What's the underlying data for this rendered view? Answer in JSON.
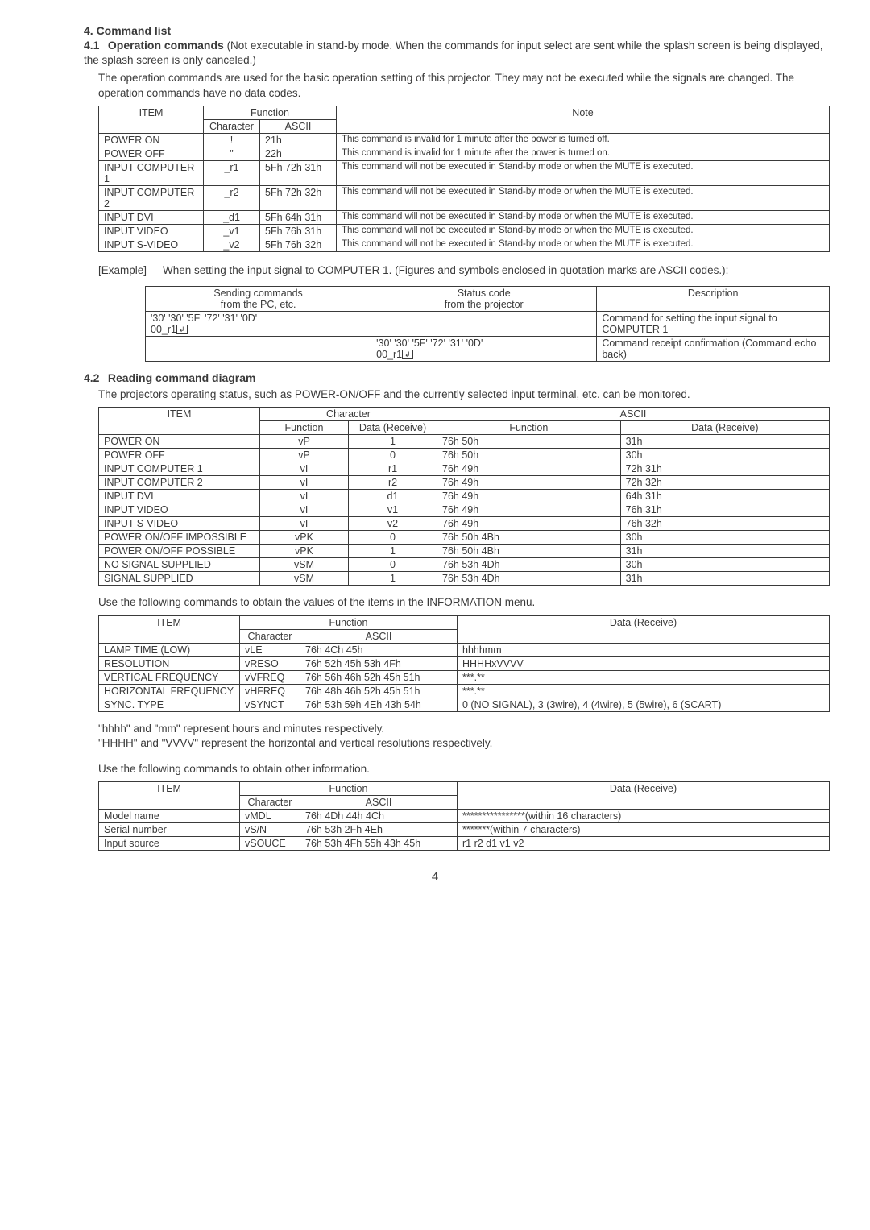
{
  "s4": {
    "heading": "4.  Command list",
    "s41": {
      "num": "4.1",
      "title": "Operation commands",
      "inline": " (Not executable in stand-by mode. When the commands for input select are sent while the splash screen is being displayed, the splash screen is only canceled.)",
      "para": "The operation commands are used for the basic operation setting of this projector. They may not be executed while the signals are changed. The operation commands have no data codes.",
      "table": {
        "h_item": "ITEM",
        "h_func": "Function",
        "h_char": "Character",
        "h_ascii": "ASCII",
        "h_note": "Note",
        "rows": [
          {
            "item": "POWER ON",
            "char": "!",
            "ascii": "21h",
            "note": "This command is invalid for 1 minute after the power is turned off."
          },
          {
            "item": "POWER OFF",
            "char": "\"",
            "ascii": "22h",
            "note": "This command is invalid for 1 minute after the power is turned on."
          },
          {
            "item": "INPUT COMPUTER 1",
            "char": "_r1",
            "ascii": "5Fh 72h 31h",
            "note": "This command will not be executed in Stand-by mode or when the MUTE is executed."
          },
          {
            "item": "INPUT COMPUTER 2",
            "char": "_r2",
            "ascii": "5Fh 72h 32h",
            "note": "This command will not be executed in Stand-by mode or when the MUTE is executed."
          },
          {
            "item": "INPUT DVI",
            "char": "_d1",
            "ascii": "5Fh 64h 31h",
            "note": "This command will not be executed in Stand-by mode or when the MUTE is executed."
          },
          {
            "item": "INPUT VIDEO",
            "char": "_v1",
            "ascii": "5Fh 76h 31h",
            "note": "This command will not be executed in Stand-by mode or when the MUTE is executed."
          },
          {
            "item": "INPUT S-VIDEO",
            "char": "_v2",
            "ascii": "5Fh 76h 32h",
            "note": "This command will not be executed in Stand-by mode or when the MUTE is executed."
          }
        ]
      },
      "example_label": "[Example]",
      "example_text": "When setting the input signal to COMPUTER 1. (Figures and symbols enclosed in quotation marks are ASCII codes.):",
      "ex_table": {
        "h1a": "Sending commands",
        "h1b": "from the PC, etc.",
        "h2a": "Status code",
        "h2b": "from the projector",
        "h3": "Description",
        "r1c1a": "'30' '30' '5F' '72' '31' '0D'",
        "r1c1b": "00_r1",
        "r1c3": "Command for setting the input signal to COMPUTER 1",
        "r2c2a": "'30' '30' '5F' '72' '31' '0D'",
        "r2c2b": "00_r1",
        "r2c3": "Command receipt confirmation (Command echo back)"
      }
    },
    "s42": {
      "num": "4.2",
      "title": "Reading command diagram",
      "para": "The projectors operating status, such as POWER-ON/OFF and the currently selected input terminal, etc. can be monitored.",
      "table": {
        "h_item": "ITEM",
        "h_char": "Character",
        "h_ascii": "ASCII",
        "h_func": "Function",
        "h_data": "Data (Receive)",
        "rows": [
          {
            "item": "POWER ON",
            "cf": "vP",
            "cd": "1",
            "af": "76h  50h",
            "ad": "31h"
          },
          {
            "item": "POWER OFF",
            "cf": "vP",
            "cd": "0",
            "af": "76h  50h",
            "ad": "30h"
          },
          {
            "item": "INPUT COMPUTER 1",
            "cf": "vI",
            "cd": "r1",
            "af": "76h  49h",
            "ad": "72h  31h"
          },
          {
            "item": "INPUT COMPUTER 2",
            "cf": "vI",
            "cd": "r2",
            "af": "76h  49h",
            "ad": "72h  32h"
          },
          {
            "item": "INPUT DVI",
            "cf": "vI",
            "cd": "d1",
            "af": "76h  49h",
            "ad": "64h  31h"
          },
          {
            "item": "INPUT VIDEO",
            "cf": "vI",
            "cd": "v1",
            "af": "76h  49h",
            "ad": "76h  31h"
          },
          {
            "item": "INPUT S-VIDEO",
            "cf": "vI",
            "cd": "v2",
            "af": "76h  49h",
            "ad": "76h  32h"
          },
          {
            "item": "POWER ON/OFF IMPOSSIBLE",
            "cf": "vPK",
            "cd": "0",
            "af": "76h  50h  4Bh",
            "ad": "30h"
          },
          {
            "item": "POWER ON/OFF POSSIBLE",
            "cf": "vPK",
            "cd": "1",
            "af": "76h  50h  4Bh",
            "ad": "31h"
          },
          {
            "item": "NO SIGNAL SUPPLIED",
            "cf": "vSM",
            "cd": "0",
            "af": "76h  53h  4Dh",
            "ad": "30h"
          },
          {
            "item": "SIGNAL SUPPLIED",
            "cf": "vSM",
            "cd": "1",
            "af": "76h  53h  4Dh",
            "ad": "31h"
          }
        ]
      },
      "info_intro": "Use the following commands to obtain the values of the items in the INFORMATION menu.",
      "info_table": {
        "h_item": "ITEM",
        "h_func": "Function",
        "h_char": "Character",
        "h_ascii": "ASCII",
        "h_data": "Data (Receive)",
        "rows": [
          {
            "item": "LAMP TIME (LOW)",
            "char": "vLE",
            "ascii": "76h  4Ch  45h",
            "data": "hhhhmm"
          },
          {
            "item": "RESOLUTION",
            "char": "vRESO",
            "ascii": "76h  52h  45h  53h  4Fh",
            "data": "HHHHxVVVV"
          },
          {
            "item": "VERTICAL FREQUENCY",
            "char": "vVFREQ",
            "ascii": "76h  56h  46h  52h  45h  51h",
            "data": "***.**"
          },
          {
            "item": "HORIZONTAL FREQUENCY",
            "char": "vHFREQ",
            "ascii": "76h  48h  46h  52h  45h  51h",
            "data": "***.**"
          },
          {
            "item": "SYNC. TYPE",
            "char": "vSYNCT",
            "ascii": "76h  53h  59h  4Eh  43h  54h",
            "data": "0 (NO SIGNAL), 3 (3wire),  4 (4wire), 5 (5wire), 6 (SCART)"
          }
        ]
      },
      "note1": "\"hhhh\" and \"mm\" represent hours and minutes respectively.",
      "note2": "\"HHHH\" and \"VVVV\" represent the horizontal and vertical resolutions respectively.",
      "other_intro": "Use the following commands to obtain other information.",
      "other_table": {
        "h_item": "ITEM",
        "h_func": "Function",
        "h_char": "Character",
        "h_ascii": "ASCII",
        "h_data": "Data (Receive)",
        "rows": [
          {
            "item": "Model name",
            "char": "vMDL",
            "ascii": "76h  4Dh  44h  4Ch",
            "data": "****************(within 16 characters)"
          },
          {
            "item": "Serial number",
            "char": "vS/N",
            "ascii": "76h  53h  2Fh  4Eh",
            "data": "*******(within 7 characters)"
          },
          {
            "item": "Input source",
            "char": "vSOUCE",
            "ascii": "76h  53h  4Fh  55h  43h  45h",
            "data": "r1 r2 d1 v1 v2"
          }
        ]
      }
    }
  },
  "page": "4"
}
